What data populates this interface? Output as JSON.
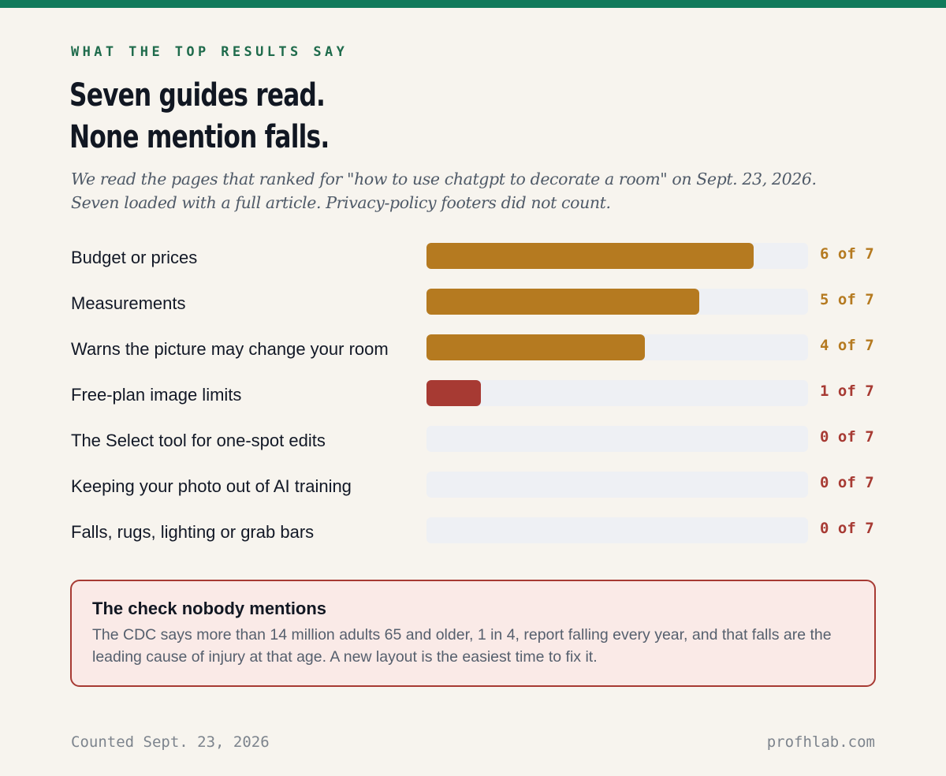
{
  "kicker": "WHAT THE TOP RESULTS SAY",
  "headline": {
    "line1": "Seven guides read.",
    "line2": "None mention falls."
  },
  "dek": "We read the pages that ranked for \"how to use chatgpt to decorate a room\" on Sept. 23, 2026. Seven loaded with a full article. Privacy-policy footers did not count.",
  "colors": {
    "accent_green": "#117a5b",
    "bar_gold": "#b57a20",
    "bar_red": "#a73a33",
    "track": "#eef0f4",
    "callout_bg": "#faeae7"
  },
  "chart_data": {
    "type": "bar",
    "orientation": "horizontal",
    "categories": [
      "Budget or prices",
      "Measurements",
      "Warns the picture may change your room",
      "Free-plan image limits",
      "The Select tool for one-spot edits",
      "Keeping your photo out of AI training",
      "Falls, rugs, lighting or grab bars"
    ],
    "values": [
      6,
      5,
      4,
      1,
      0,
      0,
      0
    ],
    "total": 7,
    "value_labels": [
      "6 of 7",
      "5 of 7",
      "4 of 7",
      "1 of 7",
      "0 of 7",
      "0 of 7",
      "0 of 7"
    ],
    "bar_colors": [
      "#b57a20",
      "#b57a20",
      "#b57a20",
      "#a73a33",
      "#a73a33",
      "#a73a33",
      "#a73a33"
    ],
    "xlim": [
      0,
      7
    ],
    "grid": false
  },
  "callout": {
    "title": "The check nobody mentions",
    "body": "The CDC says more than 14 million adults 65 and older, 1 in 4, report falling every year, and that falls are the leading cause of injury at that age. A new layout is the easiest time to fix it."
  },
  "footer": {
    "left": "Counted Sept. 23, 2026",
    "right": "profhlab.com"
  }
}
